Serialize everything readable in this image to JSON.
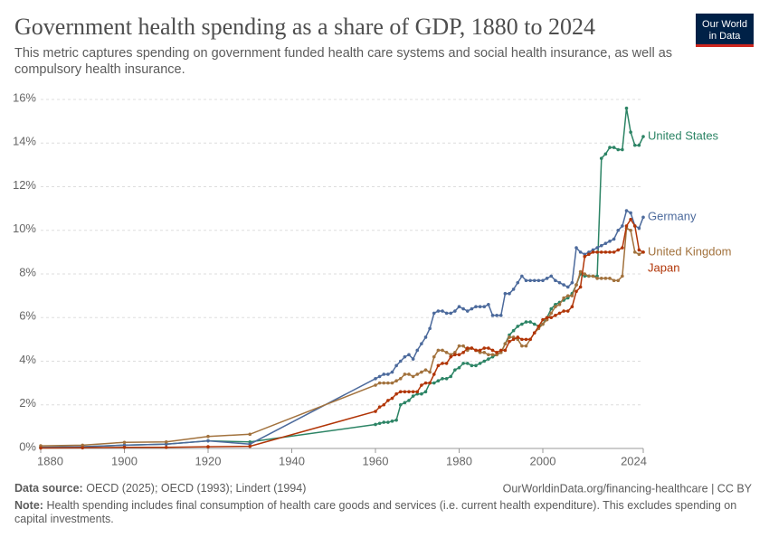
{
  "chart_data": {
    "type": "line",
    "title": "Government health spending as a share of GDP, 1880 to 2024",
    "subtitle": "This metric captures spending on government funded health care systems and social health insurance, as well as compulsory health insurance.",
    "logo": [
      "Our World",
      "in Data"
    ],
    "source_label": "Data source:",
    "source": "OECD (2025); OECD (1993); Lindert (1994)",
    "url": "OurWorldinData.org/financing-healthcare | CC BY",
    "note_label": "Note:",
    "note": "Health spending includes final consumption of health care goods and services (i.e. current health expenditure). This excludes spending on capital investments.",
    "x": [
      1880,
      1890,
      1900,
      1910,
      1920,
      1930,
      1960,
      1961,
      1962,
      1963,
      1964,
      1965,
      1966,
      1967,
      1968,
      1969,
      1970,
      1971,
      1972,
      1973,
      1974,
      1975,
      1976,
      1977,
      1978,
      1979,
      1980,
      1981,
      1982,
      1983,
      1984,
      1985,
      1986,
      1987,
      1988,
      1989,
      1990,
      1991,
      1992,
      1993,
      1994,
      1995,
      1996,
      1997,
      1998,
      1999,
      2000,
      2001,
      2002,
      2003,
      2004,
      2005,
      2006,
      2007,
      2008,
      2009,
      2010,
      2011,
      2012,
      2013,
      2014,
      2015,
      2016,
      2017,
      2018,
      2019,
      2020,
      2021,
      2022,
      2023,
      2024
    ],
    "xlim": [
      1880,
      2024
    ],
    "xticks": [
      1880,
      1900,
      1920,
      1940,
      1960,
      1980,
      2000,
      2024
    ],
    "ylim": [
      0,
      16
    ],
    "yticks": [
      {
        "value": 0,
        "label": "0%"
      },
      {
        "value": 2,
        "label": "2%"
      },
      {
        "value": 4,
        "label": "4%"
      },
      {
        "value": 6,
        "label": "6%"
      },
      {
        "value": 8,
        "label": "8%"
      },
      {
        "value": 10,
        "label": "10%"
      },
      {
        "value": 12,
        "label": "12%"
      },
      {
        "value": 14,
        "label": "14%"
      },
      {
        "value": 16,
        "label": "16%"
      }
    ],
    "grid": true,
    "series": [
      {
        "name": "United States",
        "color": "#2c8465",
        "values": [
          0.05,
          0.08,
          0.15,
          0.2,
          0.35,
          0.3,
          1.1,
          1.15,
          1.2,
          1.2,
          1.25,
          1.3,
          2.0,
          2.1,
          2.2,
          2.4,
          2.5,
          2.5,
          2.6,
          3.0,
          3.0,
          3.1,
          3.2,
          3.2,
          3.3,
          3.6,
          3.7,
          3.9,
          3.9,
          3.8,
          3.8,
          3.9,
          4.0,
          4.1,
          4.2,
          4.3,
          4.4,
          4.8,
          5.2,
          5.4,
          5.6,
          5.7,
          5.8,
          5.8,
          5.7,
          5.6,
          5.7,
          6.0,
          6.4,
          6.6,
          6.7,
          6.8,
          6.9,
          7.1,
          7.5,
          8.0,
          7.9,
          7.9,
          7.9,
          7.9,
          13.3,
          13.5,
          13.8,
          13.8,
          13.7,
          13.7,
          15.6,
          14.5,
          13.9,
          13.9,
          14.3
        ]
      },
      {
        "name": "Germany",
        "color": "#4c6a9c",
        "values": [
          0.05,
          0.08,
          0.15,
          0.2,
          0.35,
          0.2,
          3.2,
          3.3,
          3.4,
          3.4,
          3.5,
          3.8,
          4.0,
          4.2,
          4.3,
          4.1,
          4.5,
          4.8,
          5.1,
          5.5,
          6.2,
          6.3,
          6.3,
          6.2,
          6.2,
          6.3,
          6.5,
          6.4,
          6.3,
          6.4,
          6.5,
          6.5,
          6.5,
          6.6,
          6.1,
          6.1,
          6.1,
          7.1,
          7.1,
          7.3,
          7.6,
          7.9,
          7.7,
          7.7,
          7.7,
          7.7,
          7.7,
          7.8,
          7.9,
          7.7,
          7.6,
          7.5,
          7.4,
          7.6,
          9.2,
          9.0,
          8.9,
          9.0,
          9.1,
          9.2,
          9.3,
          9.4,
          9.5,
          9.6,
          10.0,
          10.2,
          10.9,
          10.8,
          10.2,
          10.1,
          10.6
        ]
      },
      {
        "name": "United Kingdom",
        "color": "#a2723d",
        "values": [
          0.12,
          0.15,
          0.28,
          0.3,
          0.55,
          0.65,
          2.9,
          3.0,
          3.0,
          3.0,
          3.0,
          3.1,
          3.2,
          3.4,
          3.4,
          3.3,
          3.4,
          3.5,
          3.6,
          3.5,
          4.2,
          4.5,
          4.5,
          4.4,
          4.3,
          4.4,
          4.7,
          4.7,
          4.5,
          4.6,
          4.5,
          4.4,
          4.4,
          4.3,
          4.3,
          4.3,
          4.4,
          4.8,
          5.1,
          5.1,
          5.0,
          4.7,
          4.7,
          5.0,
          5.3,
          5.5,
          5.7,
          5.9,
          6.2,
          6.5,
          6.6,
          6.9,
          7.0,
          7.0,
          7.5,
          8.1,
          8.0,
          7.9,
          7.9,
          7.8,
          7.8,
          7.8,
          7.8,
          7.7,
          7.7,
          7.9,
          10.1,
          10.0,
          9.0,
          8.9,
          9.0
        ]
      },
      {
        "name": "Japan",
        "color": "#b13507",
        "values": [
          0.02,
          0.03,
          0.05,
          0.05,
          0.08,
          0.1,
          1.7,
          1.9,
          2.0,
          2.2,
          2.3,
          2.5,
          2.6,
          2.6,
          2.6,
          2.6,
          2.6,
          2.9,
          3.0,
          3.0,
          3.4,
          3.8,
          3.9,
          3.9,
          4.2,
          4.3,
          4.3,
          4.4,
          4.6,
          4.6,
          4.5,
          4.5,
          4.6,
          4.6,
          4.5,
          4.4,
          4.5,
          4.5,
          4.9,
          5.0,
          5.1,
          5.0,
          5.0,
          5.0,
          5.3,
          5.6,
          5.9,
          6.0,
          6.0,
          6.1,
          6.2,
          6.3,
          6.3,
          6.5,
          7.2,
          7.4,
          8.8,
          8.9,
          9.0,
          9.0,
          9.0,
          9.0,
          9.0,
          9.0,
          9.1,
          9.2,
          10.2,
          10.5,
          10.2,
          9.1,
          9.0
        ]
      }
    ]
  }
}
